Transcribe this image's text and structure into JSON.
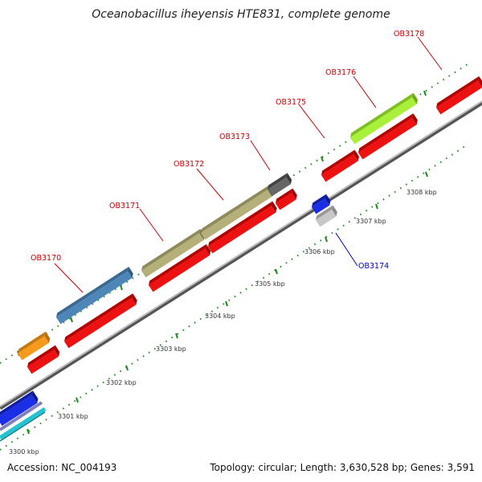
{
  "title": "Oceanobacillus iheyensis HTE831, complete genome",
  "accession": "Accession: NC_004193",
  "topology": "Topology: circular; Length: 3,630,528 bp; Genes: 3,591",
  "colors": {
    "backbone": "#888888",
    "tick": "#1a8a1a",
    "label_red": "#cc0000",
    "label_blue": "#0000cc",
    "gene_red": "#ee1111",
    "gene_olive": "#b5b07a",
    "gene_steelblue": "#4f86b8",
    "gene_orange": "#f59a1c",
    "gene_lime": "#a8f03a",
    "gene_darkgray": "#666666",
    "gene_blue": "#1a2ee6",
    "gene_lightgray": "#c8c8c8",
    "gene_cyan": "#22c4d4",
    "gene_purple": "#8080c0"
  },
  "kbp_labels": [
    "3300 kbp",
    "3301 kbp",
    "3302 kbp",
    "3303 kbp",
    "3304 kbp",
    "3305 kbp",
    "3306 kbp",
    "3307 kbp",
    "3308 kbp"
  ],
  "gene_labels": [
    {
      "name": "OB3170",
      "color": "red"
    },
    {
      "name": "OB3171",
      "color": "red"
    },
    {
      "name": "OB3172",
      "color": "red"
    },
    {
      "name": "OB3173",
      "color": "red"
    },
    {
      "name": "OB3174",
      "color": "blue"
    },
    {
      "name": "OB3175",
      "color": "red"
    },
    {
      "name": "OB3176",
      "color": "red"
    },
    {
      "name": "OB3178",
      "color": "red"
    }
  ]
}
